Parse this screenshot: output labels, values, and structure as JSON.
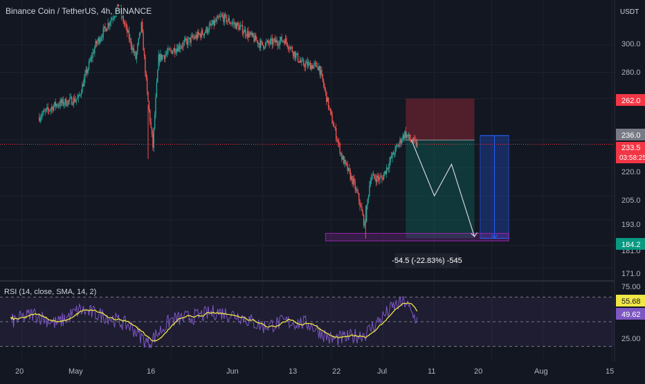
{
  "chart_data": {
    "type": "candlestick",
    "title": "Binance Coin / TetherUS, 4h, BINANCE",
    "currency_label": "USDT",
    "price_axis": {
      "ticks": [
        "300.0",
        "280.0",
        "220.0",
        "205.0",
        "193.0",
        "181.0",
        "171.0"
      ],
      "log_scale": true,
      "range": [
        166,
        336
      ]
    },
    "price_badges": {
      "stop": {
        "value": "262.0",
        "color": "#f23645"
      },
      "entry": {
        "value": "236.0",
        "color": "#787b86"
      },
      "last": {
        "value": "233.5",
        "countdown": "03:58:25",
        "color": "#f23645"
      },
      "target": {
        "value": "184.2",
        "color": "#089981"
      }
    },
    "x_axis": {
      "ticks": [
        "20",
        "May",
        "16",
        "Jun",
        "13",
        "22",
        "Jul",
        "11",
        "20",
        "Aug",
        "15"
      ]
    },
    "anchors": [
      {
        "date": "2021-04-23",
        "price": 250
      },
      {
        "date": "2021-04-26",
        "price": 258
      },
      {
        "date": "2021-04-30",
        "price": 262
      },
      {
        "date": "2021-05-03",
        "price": 300
      },
      {
        "date": "2021-05-07",
        "price": 330
      },
      {
        "date": "2021-05-10",
        "price": 290
      },
      {
        "date": "2021-05-11",
        "price": 315
      },
      {
        "date": "2021-05-12",
        "price": 265
      },
      {
        "date": "2021-05-13",
        "price": 232
      },
      {
        "date": "2021-05-14",
        "price": 290
      },
      {
        "date": "2021-05-18",
        "price": 300
      },
      {
        "date": "2021-05-22",
        "price": 310
      },
      {
        "date": "2021-05-25",
        "price": 322
      },
      {
        "date": "2021-05-28",
        "price": 314
      },
      {
        "date": "2021-06-01",
        "price": 300
      },
      {
        "date": "2021-06-05",
        "price": 304
      },
      {
        "date": "2021-06-08",
        "price": 286
      },
      {
        "date": "2021-06-11",
        "price": 284
      },
      {
        "date": "2021-06-13",
        "price": 252
      },
      {
        "date": "2021-06-15",
        "price": 226
      },
      {
        "date": "2021-06-17",
        "price": 212
      },
      {
        "date": "2021-06-18",
        "price": 203
      },
      {
        "date": "2021-06-19",
        "price": 190
      },
      {
        "date": "2021-06-20",
        "price": 215
      },
      {
        "date": "2021-06-22",
        "price": 214
      },
      {
        "date": "2021-06-24",
        "price": 228
      },
      {
        "date": "2021-06-26",
        "price": 240
      },
      {
        "date": "2021-06-27",
        "price": 236
      },
      {
        "date": "2021-06-28",
        "price": 233.5
      }
    ],
    "rsi": {
      "label": "RSI (14, close, SMA, 14, 2)",
      "levels": {
        "upper": "75.00",
        "lower": "25.00"
      },
      "rsi_badge": "49.62",
      "sma_badge": "55.68",
      "rsi_color": "#7e57c2",
      "sma_color": "#f0e646",
      "range": [
        10,
        90
      ],
      "anchors": [
        {
          "date": "2021-04-18",
          "rsi": 50
        },
        {
          "date": "2021-04-22",
          "rsi": 58
        },
        {
          "date": "2021-04-26",
          "rsi": 48
        },
        {
          "date": "2021-04-30",
          "rsi": 62
        },
        {
          "date": "2021-05-05",
          "rsi": 55
        },
        {
          "date": "2021-05-09",
          "rsi": 45
        },
        {
          "date": "2021-05-12",
          "rsi": 28
        },
        {
          "date": "2021-05-16",
          "rsi": 52
        },
        {
          "date": "2021-05-20",
          "rsi": 55
        },
        {
          "date": "2021-05-24",
          "rsi": 60
        },
        {
          "date": "2021-05-28",
          "rsi": 56
        },
        {
          "date": "2021-06-01",
          "rsi": 45
        },
        {
          "date": "2021-06-05",
          "rsi": 50
        },
        {
          "date": "2021-06-09",
          "rsi": 48
        },
        {
          "date": "2021-06-13",
          "rsi": 32
        },
        {
          "date": "2021-06-16",
          "rsi": 34
        },
        {
          "date": "2021-06-19",
          "rsi": 38
        },
        {
          "date": "2021-06-22",
          "rsi": 55
        },
        {
          "date": "2021-06-24",
          "rsi": 66
        },
        {
          "date": "2021-06-26",
          "rsi": 70
        },
        {
          "date": "2021-06-27",
          "rsi": 58
        },
        {
          "date": "2021-06-28",
          "rsi": 52
        }
      ]
    },
    "annotations": {
      "short_position": {
        "entry": 236,
        "stop": 262,
        "target": 184.2,
        "start_date": "2021-06-26",
        "end_date": "2021-07-08"
      },
      "measure": {
        "text": "-54.5 (-22.83%) -545",
        "start_date": "2021-07-09",
        "end_date": "2021-07-14",
        "from": 238.7,
        "to": 184.2
      },
      "support_zone": {
        "start_date": "2021-06-12",
        "end_date": "2021-07-14",
        "low": 183,
        "high": 186.5
      },
      "projected_path": [
        {
          "date": "2021-06-27",
          "price": 236
        },
        {
          "date": "2021-07-01",
          "price": 205
        },
        {
          "date": "2021-07-04",
          "price": 222
        },
        {
          "date": "2021-07-08",
          "price": 185
        }
      ]
    },
    "colors": {
      "up": "#26a69a",
      "down": "#ef5350",
      "background": "#131722",
      "grid": "#1e222d"
    },
    "grid": true
  }
}
